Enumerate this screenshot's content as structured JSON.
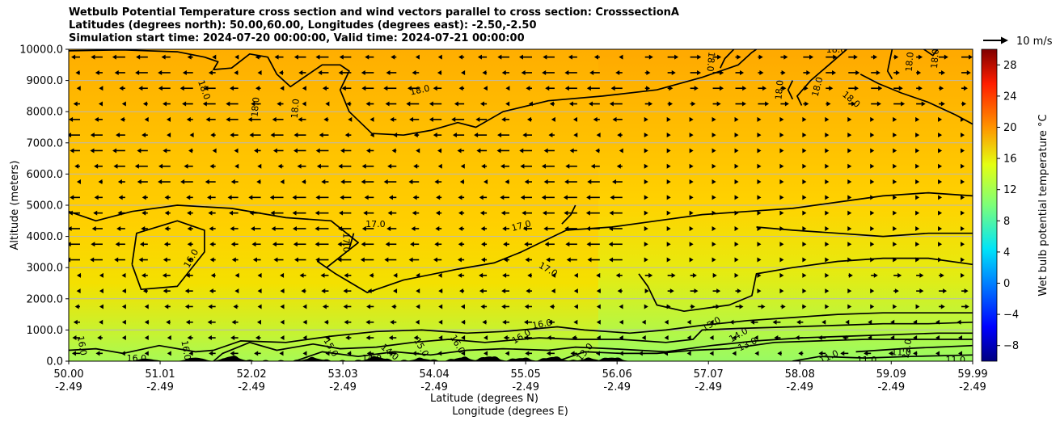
{
  "chart_data": {
    "type": "heatmap",
    "title_lines": [
      "Wetbulb Potential Temperature cross section and wind vectors parallel to cross section: CrosssectionA",
      "Latitudes (degrees north): 50.00,60.00, Longitudes (degrees east): -2.50,-2.50",
      "Simulation start time: 2024-07-20 00:00:00, Valid time: 2024-07-21 00:00:00"
    ],
    "xlabel_line1": "Latitude (degrees N)",
    "xlabel_line2": "Longitude (degrees E)",
    "ylabel": "Altitude (meters)",
    "x_ticks_lat": [
      "50.00",
      "51.01",
      "52.02",
      "53.03",
      "54.04",
      "55.05",
      "56.06",
      "57.07",
      "58.08",
      "59.09",
      "59.99"
    ],
    "x_ticks_lon": [
      "-2.49",
      "-2.49",
      "-2.49",
      "-2.49",
      "-2.49",
      "-2.49",
      "-2.49",
      "-2.49",
      "-2.49",
      "-2.49",
      "-2.49"
    ],
    "y_ticks": [
      "0.0",
      "1000.0",
      "2000.0",
      "3000.0",
      "4000.0",
      "5000.0",
      "6000.0",
      "7000.0",
      "8000.0",
      "9000.0",
      "10000.0"
    ],
    "xlim": [
      50.0,
      59.99
    ],
    "ylim": [
      0,
      10000
    ],
    "grid": "horizontal",
    "colorbar": {
      "label": "Wet bulb potential temperature °C",
      "range": [
        -10,
        30
      ],
      "ticks": [
        "-8",
        "-4",
        "0",
        "4",
        "8",
        "12",
        "16",
        "20",
        "24",
        "28"
      ],
      "colormap": "jet"
    },
    "quiver_key": "10 m/s",
    "contour_labels": [
      {
        "text": "18.0",
        "lat": 53.88,
        "alt": 8700,
        "rot": -12
      },
      {
        "text": "18.0",
        "lat": 57.1,
        "alt": 9600,
        "rot": 95
      },
      {
        "text": "18.0",
        "lat": 58.48,
        "alt": 10000,
        "rot": 0
      },
      {
        "text": "18.0",
        "lat": 59.29,
        "alt": 9600,
        "rot": -85
      },
      {
        "text": "18.0",
        "lat": 59.57,
        "alt": 9700,
        "rot": -85
      },
      {
        "text": "18.0",
        "lat": 51.5,
        "alt": 8700,
        "rot": 70
      },
      {
        "text": "18.0",
        "lat": 52.06,
        "alt": 8150,
        "rot": -85
      },
      {
        "text": "18.0",
        "lat": 52.5,
        "alt": 8100,
        "rot": -85
      },
      {
        "text": "18.0",
        "lat": 57.85,
        "alt": 8700,
        "rot": -85
      },
      {
        "text": "18.0",
        "lat": 58.27,
        "alt": 8800,
        "rot": -75
      },
      {
        "text": "18.0",
        "lat": 58.65,
        "alt": 8400,
        "rot": 40
      },
      {
        "text": "17.0",
        "lat": 53.39,
        "alt": 4400,
        "rot": 0
      },
      {
        "text": "17.0",
        "lat": 55.0,
        "alt": 4350,
        "rot": -15
      },
      {
        "text": "17.0",
        "lat": 53.07,
        "alt": 3800,
        "rot": 90
      },
      {
        "text": "17.0",
        "lat": 55.3,
        "alt": 2950,
        "rot": 30
      },
      {
        "text": "16.0",
        "lat": 51.35,
        "alt": 3300,
        "rot": -60
      },
      {
        "text": "16.0",
        "lat": 55.23,
        "alt": 1200,
        "rot": -10
      },
      {
        "text": "16.0",
        "lat": 50.15,
        "alt": 500,
        "rot": 80
      },
      {
        "text": "16.0",
        "lat": 50.75,
        "alt": 100,
        "rot": 0
      },
      {
        "text": "16.0",
        "lat": 51.3,
        "alt": 350,
        "rot": 80
      },
      {
        "text": "16.0",
        "lat": 55.0,
        "alt": 800,
        "rot": -30
      },
      {
        "text": "16.0",
        "lat": 54.3,
        "alt": 550,
        "rot": 60
      },
      {
        "text": "15.0",
        "lat": 57.1,
        "alt": 1200,
        "rot": -30
      },
      {
        "text": "15.0",
        "lat": 52.9,
        "alt": 450,
        "rot": 60
      },
      {
        "text": "15.0",
        "lat": 53.9,
        "alt": 450,
        "rot": 60
      },
      {
        "text": "14.0",
        "lat": 57.4,
        "alt": 850,
        "rot": -30
      },
      {
        "text": "14.0",
        "lat": 53.35,
        "alt": 100,
        "rot": 0
      },
      {
        "text": "14.0",
        "lat": 53.55,
        "alt": 300,
        "rot": 40
      },
      {
        "text": "13.0",
        "lat": 57.5,
        "alt": 550,
        "rot": -25
      },
      {
        "text": "13.0",
        "lat": 55.7,
        "alt": 300,
        "rot": -50
      },
      {
        "text": "11.0",
        "lat": 58.4,
        "alt": 150,
        "rot": -25
      },
      {
        "text": "11.0",
        "lat": 58.82,
        "alt": 50,
        "rot": 0
      },
      {
        "text": "11.0",
        "lat": 59.2,
        "alt": 300,
        "rot": 0
      },
      {
        "text": "11.0",
        "lat": 59.8,
        "alt": 50,
        "rot": 0
      },
      {
        "text": "12.0",
        "lat": 59.26,
        "alt": 400,
        "rot": -80
      }
    ],
    "contour_lines": [
      {
        "level": "18.0",
        "points": [
          [
            50.0,
            9950
          ],
          [
            50.6,
            9980
          ],
          [
            51.2,
            9920
          ],
          [
            51.5,
            9750
          ],
          [
            51.65,
            9600
          ],
          [
            51.6,
            9350
          ],
          [
            51.8,
            9400
          ],
          [
            52.0,
            9850
          ],
          [
            52.2,
            9750
          ],
          [
            52.3,
            9200
          ],
          [
            52.45,
            8800
          ],
          [
            52.6,
            9100
          ],
          [
            52.8,
            9500
          ],
          [
            53.0,
            9500
          ],
          [
            53.1,
            9300
          ],
          [
            53.0,
            8700
          ],
          [
            53.1,
            8000
          ],
          [
            53.35,
            7300
          ],
          [
            53.7,
            7250
          ],
          [
            54.0,
            7400
          ],
          [
            54.3,
            7650
          ],
          [
            54.5,
            7500
          ],
          [
            54.8,
            8000
          ],
          [
            55.3,
            8350
          ],
          [
            55.9,
            8500
          ],
          [
            56.5,
            8700
          ],
          [
            57.0,
            9100
          ],
          [
            57.4,
            9500
          ],
          [
            57.55,
            9900
          ],
          [
            57.6,
            10000
          ]
        ]
      },
      {
        "level": "18.0",
        "points": [
          [
            57.35,
            10000
          ],
          [
            57.25,
            9700
          ],
          [
            57.2,
            9400
          ]
        ]
      },
      {
        "level": "18.0",
        "points": [
          [
            58.0,
            9000
          ],
          [
            57.95,
            8700
          ],
          [
            58.0,
            8400
          ]
        ]
      },
      {
        "level": "18.0",
        "points": [
          [
            58.6,
            10000
          ],
          [
            58.4,
            9500
          ],
          [
            58.2,
            9000
          ],
          [
            58.05,
            8500
          ],
          [
            58.1,
            8200
          ]
        ]
      },
      {
        "level": "18.0",
        "points": [
          [
            58.75,
            9200
          ],
          [
            58.95,
            8900
          ],
          [
            59.2,
            8600
          ],
          [
            59.5,
            8300
          ],
          [
            59.8,
            7900
          ],
          [
            59.99,
            7600
          ]
        ]
      },
      {
        "level": "18.0",
        "points": [
          [
            59.1,
            10000
          ],
          [
            59.05,
            9300
          ],
          [
            59.1,
            9050
          ]
        ]
      },
      {
        "level": "18.0",
        "points": [
          [
            59.45,
            10000
          ],
          [
            59.55,
            9800
          ],
          [
            59.6,
            10000
          ]
        ]
      },
      {
        "level": "17.0",
        "points": [
          [
            50.0,
            4800
          ],
          [
            50.3,
            4500
          ],
          [
            50.7,
            4800
          ],
          [
            51.2,
            5000
          ],
          [
            51.8,
            4900
          ],
          [
            52.4,
            4600
          ],
          [
            52.9,
            4500
          ],
          [
            53.2,
            3800
          ],
          [
            52.85,
            3000
          ],
          [
            52.75,
            3200
          ],
          [
            52.95,
            2800
          ],
          [
            53.3,
            2200
          ],
          [
            53.7,
            2600
          ],
          [
            54.3,
            2950
          ],
          [
            54.7,
            3150
          ],
          [
            55.0,
            3500
          ],
          [
            55.5,
            4200
          ],
          [
            56.0,
            4300
          ],
          [
            56.5,
            4500
          ],
          [
            57.0,
            4700
          ],
          [
            57.5,
            4800
          ],
          [
            58.0,
            4900
          ],
          [
            58.5,
            5100
          ],
          [
            59.0,
            5300
          ],
          [
            59.5,
            5400
          ],
          [
            59.99,
            5300
          ]
        ]
      },
      {
        "level": "17.0",
        "points": [
          [
            53.15,
            4100
          ],
          [
            53.1,
            3600
          ]
        ]
      },
      {
        "level": "17.0",
        "points": [
          [
            55.45,
            4400
          ],
          [
            55.55,
            4700
          ],
          [
            55.6,
            5000
          ]
        ]
      },
      {
        "level": "17.0",
        "points": [
          [
            56.3,
            2800
          ],
          [
            56.4,
            2400
          ],
          [
            56.5,
            1800
          ],
          [
            56.8,
            1600
          ],
          [
            57.3,
            1800
          ],
          [
            57.55,
            2100
          ],
          [
            57.6,
            2800
          ],
          [
            58.0,
            3000
          ],
          [
            58.5,
            3200
          ],
          [
            59.0,
            3300
          ],
          [
            59.5,
            3300
          ],
          [
            59.99,
            3100
          ]
        ]
      },
      {
        "level": "17.0",
        "points": [
          [
            57.6,
            4300
          ],
          [
            58.0,
            4200
          ],
          [
            58.5,
            4100
          ],
          [
            59.0,
            4000
          ],
          [
            59.5,
            4100
          ],
          [
            59.99,
            4100
          ]
        ]
      },
      {
        "level": "16.0",
        "points": [
          [
            50.7,
            3100
          ],
          [
            50.75,
            4100
          ],
          [
            51.2,
            4500
          ],
          [
            51.5,
            4200
          ],
          [
            51.5,
            3500
          ],
          [
            51.2,
            2400
          ],
          [
            50.8,
            2300
          ],
          [
            50.7,
            3100
          ]
        ]
      },
      {
        "level": "16.0",
        "points": [
          [
            50.0,
            350
          ],
          [
            50.3,
            400
          ],
          [
            50.6,
            250
          ],
          [
            51.0,
            500
          ],
          [
            51.4,
            300
          ],
          [
            51.6,
            350
          ],
          [
            51.9,
            650
          ],
          [
            52.4,
            600
          ],
          [
            52.9,
            800
          ],
          [
            53.4,
            950
          ],
          [
            53.9,
            1000
          ],
          [
            54.4,
            900
          ],
          [
            54.8,
            950
          ],
          [
            55.0,
            1000
          ],
          [
            55.4,
            1100
          ],
          [
            55.7,
            1000
          ],
          [
            56.2,
            900
          ],
          [
            56.6,
            1000
          ],
          [
            57.0,
            1150
          ],
          [
            57.5,
            1300
          ],
          [
            58.0,
            1400
          ],
          [
            58.5,
            1500
          ],
          [
            59.0,
            1550
          ],
          [
            59.5,
            1550
          ],
          [
            59.99,
            1550
          ]
        ]
      },
      {
        "level": "15.0",
        "points": [
          [
            51.6,
            0
          ],
          [
            51.7,
            250
          ],
          [
            52.0,
            600
          ],
          [
            52.3,
            350
          ],
          [
            52.7,
            550
          ],
          [
            53.0,
            400
          ],
          [
            53.4,
            450
          ],
          [
            53.8,
            600
          ],
          [
            54.2,
            700
          ],
          [
            54.6,
            600
          ],
          [
            55.2,
            750
          ],
          [
            55.6,
            700
          ],
          [
            56.1,
            700
          ],
          [
            56.6,
            600
          ],
          [
            56.9,
            700
          ],
          [
            57.0,
            1000
          ],
          [
            57.4,
            1050
          ],
          [
            58.0,
            1100
          ],
          [
            58.5,
            1150
          ],
          [
            59.0,
            1200
          ],
          [
            59.5,
            1200
          ],
          [
            59.99,
            1250
          ]
        ]
      },
      {
        "level": "14.0",
        "points": [
          [
            52.5,
            0
          ],
          [
            52.8,
            300
          ],
          [
            53.2,
            150
          ],
          [
            53.6,
            300
          ],
          [
            54.0,
            200
          ],
          [
            54.4,
            350
          ],
          [
            54.8,
            400
          ],
          [
            55.3,
            350
          ],
          [
            55.6,
            450
          ],
          [
            56.0,
            400
          ],
          [
            56.6,
            300
          ],
          [
            57.1,
            500
          ],
          [
            57.6,
            650
          ],
          [
            58.1,
            750
          ],
          [
            58.6,
            800
          ],
          [
            59.1,
            850
          ],
          [
            59.6,
            900
          ],
          [
            59.99,
            900
          ]
        ]
      },
      {
        "level": "13.0",
        "points": [
          [
            55.4,
            0
          ],
          [
            55.7,
            300
          ],
          [
            56.1,
            250
          ],
          [
            56.5,
            250
          ],
          [
            56.9,
            350
          ],
          [
            57.3,
            400
          ],
          [
            57.8,
            600
          ],
          [
            58.3,
            650
          ],
          [
            58.8,
            700
          ],
          [
            59.3,
            700
          ],
          [
            59.99,
            700
          ]
        ]
      },
      {
        "level": "11.0",
        "points": [
          [
            58.0,
            0
          ],
          [
            58.3,
            150
          ],
          [
            58.8,
            100
          ],
          [
            59.3,
            150
          ],
          [
            59.99,
            200
          ]
        ]
      },
      {
        "level": "12.0",
        "points": [
          [
            58.7,
            300
          ],
          [
            59.2,
            400
          ],
          [
            59.6,
            450
          ],
          [
            59.99,
            500
          ]
        ]
      }
    ],
    "terrain_hill_centers": [
      50.85,
      51.4,
      51.8,
      52.7,
      53.4,
      53.9,
      54.35,
      54.65,
      55.0,
      55.35,
      55.75,
      56.0
    ]
  }
}
